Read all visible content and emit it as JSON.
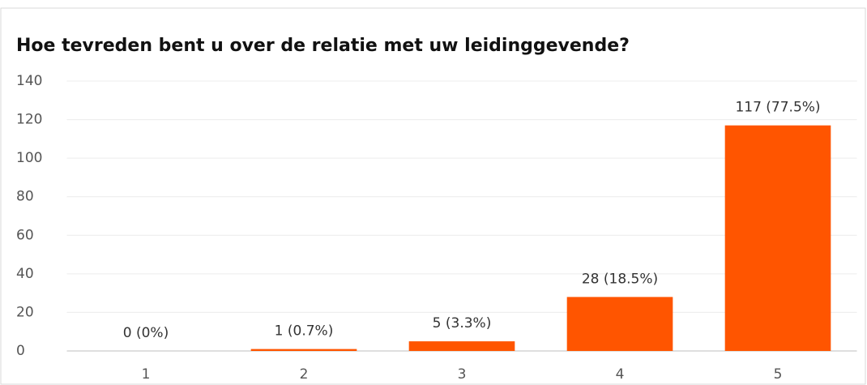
{
  "chart_data": {
    "type": "bar",
    "title": "Hoe tevreden bent u over de relatie met uw leidinggevende?",
    "categories": [
      "1",
      "2",
      "3",
      "4",
      "5"
    ],
    "values": [
      0,
      1,
      5,
      28,
      117
    ],
    "value_labels": [
      "0 (0%)",
      "1 (0.7%)",
      "5 (3.3%)",
      "28 (18.5%)",
      "117 (77.5%)"
    ],
    "color": "#ff5500",
    "ylim": [
      0,
      140
    ],
    "yticks": [
      0,
      20,
      40,
      60,
      80,
      100,
      120,
      140
    ],
    "grid": true
  }
}
